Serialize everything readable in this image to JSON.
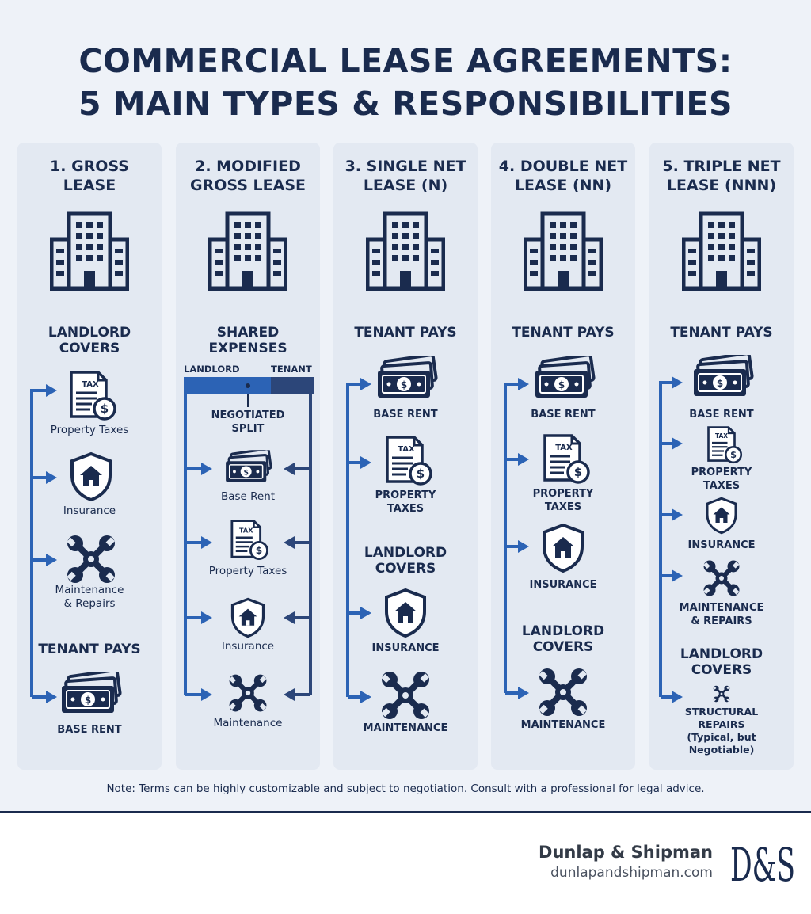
{
  "title": {
    "line1": "COMMERCIAL LEASE AGREEMENTS:",
    "line2": "5 MAIN TYPES & RESPONSIBILITIES"
  },
  "columns": [
    {
      "title_line1": "1. GROSS",
      "title_line2": "LEASE",
      "section1_line1": "LANDLORD",
      "section1_line2": "COVERS",
      "items": [
        "Property Taxes",
        "Insurance",
        "Maintenance",
        "& Repairs"
      ],
      "section2": "TENANT PAYS",
      "tenant_item": "BASE RENT"
    },
    {
      "title_line1": "2. MODIFIED",
      "title_line2": "GROSS LEASE",
      "section1_line1": "SHARED",
      "section1_line2": "EXPENSES",
      "landlord_tag": "LANDLORD",
      "tenant_tag": "TENANT",
      "split_line1": "NEGOTIATED",
      "split_line2": "SPLIT",
      "items": [
        "Base Rent",
        "Property Taxes",
        "Insurance",
        "Maintenance"
      ]
    },
    {
      "title_line1": "3. SINGLE NET",
      "title_line2": "LEASE (N)",
      "section1": "TENANT PAYS",
      "items": [
        "BASE RENT",
        "PROPERTY",
        "TAXES"
      ],
      "section2_line1": "LANDLORD",
      "section2_line2": "COVERS",
      "landlord_items": [
        "INSURANCE",
        "MAINTENANCE"
      ]
    },
    {
      "title_line1": "4. DOUBLE NET",
      "title_line2": "LEASE (NN)",
      "section1": "TENANT PAYS",
      "items": [
        "BASE RENT",
        "PROPERTY",
        "TAXES",
        "INSURANCE"
      ],
      "section2_line1": "LANDLORD",
      "section2_line2": "COVERS",
      "landlord_items": [
        "MAINTENANCE"
      ]
    },
    {
      "title_line1": "5. TRIPLE NET",
      "title_line2": "LEASE (NNN)",
      "section1": "TENANT PAYS",
      "items": [
        "BASE RENT",
        "PROPERTY",
        "TAXES",
        "INSURANCE",
        "MAINTENANCE",
        "& REPAIRS"
      ],
      "section2_line1": "LANDLORD",
      "section2_line2": "COVERS",
      "landlord_items": [
        "STRUCTURAL",
        "REPAIRS",
        "(Typical, but",
        "Negotiable)"
      ]
    }
  ],
  "icon_text": {
    "tax": "TAX",
    "dollar": "$"
  },
  "note": "Note: Terms can be highly customizable and subject to negotiation. Consult with a professional for legal advice.",
  "brand": {
    "name": "Dunlap & Shipman",
    "url": "dunlapandshipman.com",
    "logo_text": "D&S"
  },
  "colors": {
    "navy": "#1a2b4e",
    "blue": "#2c63b5",
    "column_bg": "#e3e9f2",
    "page_bg": "#eef2f8"
  }
}
